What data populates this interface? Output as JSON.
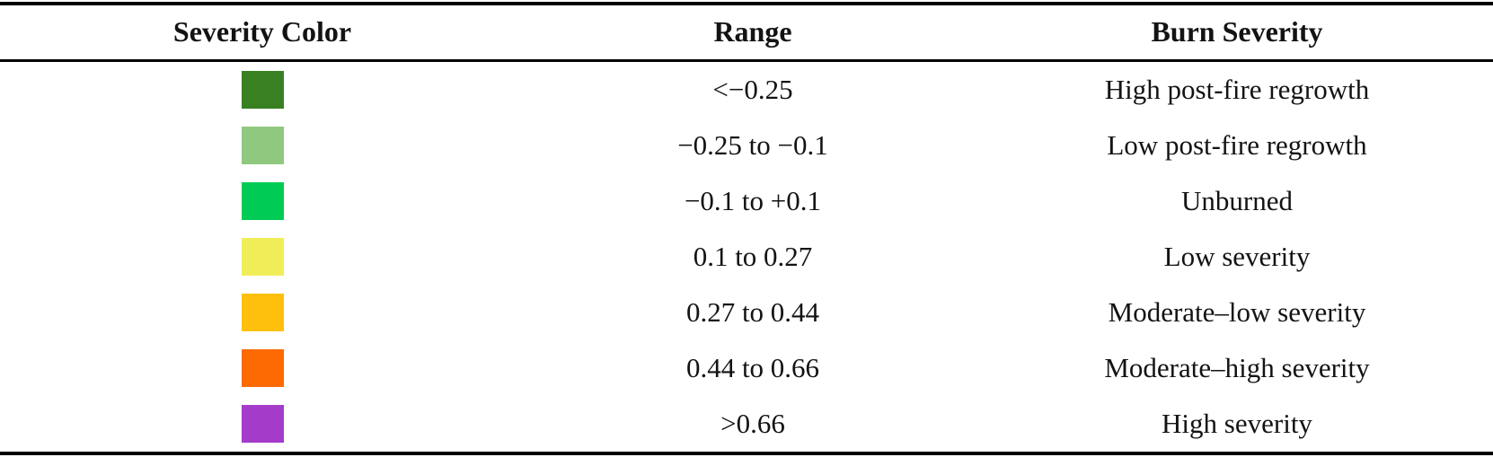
{
  "table": {
    "columns": [
      "Severity Color",
      "Range",
      "Burn Severity"
    ],
    "rows": [
      {
        "color": "#388022",
        "color_name": "dark-green",
        "range": "<−0.25",
        "burn_severity": "High post-fire regrowth"
      },
      {
        "color": "#8fc97f",
        "color_name": "sage-green",
        "range": "−0.25 to −0.1",
        "burn_severity": "Low post-fire regrowth"
      },
      {
        "color": "#00cc55",
        "color_name": "vivid-green",
        "range": "−0.1 to +0.1",
        "burn_severity": "Unburned"
      },
      {
        "color": "#f0ee58",
        "color_name": "yellow",
        "range": "0.1 to 0.27",
        "burn_severity": "Low severity"
      },
      {
        "color": "#fec00d",
        "color_name": "amber",
        "range": "0.27 to 0.44",
        "burn_severity": "Moderate–low severity"
      },
      {
        "color": "#fd6903",
        "color_name": "orange",
        "range": "0.44 to 0.66",
        "burn_severity": "Moderate–high severity"
      },
      {
        "color": "#a43bc9",
        "color_name": "purple",
        "range": ">0.66",
        "burn_severity": "High severity"
      }
    ]
  }
}
